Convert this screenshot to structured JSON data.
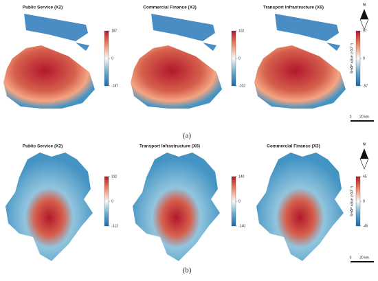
{
  "rows": [
    {
      "label": "(a)",
      "panels": [
        {
          "title": "Public Service (X2)",
          "colorbar_ticks": [
            "187",
            "0",
            "-187"
          ]
        },
        {
          "title": "Commercial Finance (X3)",
          "colorbar_ticks": [
            "102",
            "0",
            "-102"
          ]
        },
        {
          "title": "Transport Infrastructure (X6)",
          "colorbar_ticks": [
            "97",
            "0",
            "-97"
          ]
        }
      ],
      "colorbar_title": "SHAP value (×10⁻³)",
      "north": "N",
      "scale": {
        "start": "0",
        "end": "20 km"
      }
    },
    {
      "label": "(b)",
      "panels": [
        {
          "title": "Public Service (X2)",
          "colorbar_ticks": [
            "312",
            "0",
            "-312"
          ]
        },
        {
          "title": "Transport Infrastructure (X6)",
          "colorbar_ticks": [
            "140",
            "0",
            "-140"
          ]
        },
        {
          "title": "Commercial Finance (X3)",
          "colorbar_ticks": [
            "45",
            "0",
            "-45"
          ]
        }
      ],
      "colorbar_title": "SHAP value (×10⁻³)",
      "north": "N",
      "scale": {
        "start": "0",
        "end": "20 km"
      }
    }
  ]
}
